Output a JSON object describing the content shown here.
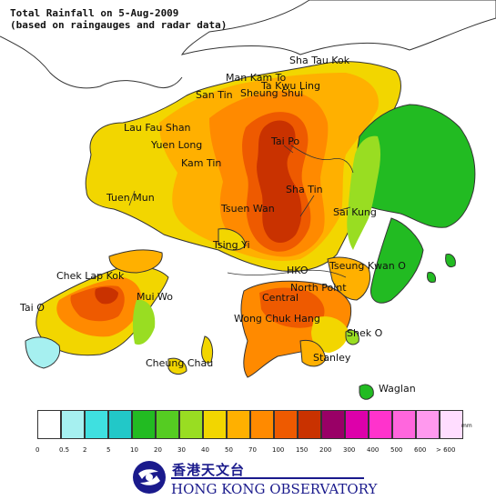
{
  "header": {
    "title_line1": "Total Rainfall on 5-Aug-2009",
    "title_line2": "(based on raingauges and radar data)"
  },
  "map": {
    "places": [
      {
        "key": "sha-tau-kok",
        "label": "Sha Tau Kok"
      },
      {
        "key": "man-kam-to",
        "label": "Man Kam To"
      },
      {
        "key": "ta-kwu-ling",
        "label": "Ta Kwu Ling"
      },
      {
        "key": "san-tin",
        "label": "San Tin"
      },
      {
        "key": "sheung-shui",
        "label": "Sheung Shui"
      },
      {
        "key": "lau-fau-shan",
        "label": "Lau Fau Shan"
      },
      {
        "key": "yuen-long",
        "label": "Yuen Long"
      },
      {
        "key": "tai-po",
        "label": "Tai Po"
      },
      {
        "key": "kam-tin",
        "label": "Kam Tin"
      },
      {
        "key": "sha-tin",
        "label": "Sha Tin"
      },
      {
        "key": "tuen-mun",
        "label": "Tuen Mun"
      },
      {
        "key": "tsuen-wan",
        "label": "Tsuen Wan"
      },
      {
        "key": "sai-kung",
        "label": "Sai Kung"
      },
      {
        "key": "tsing-yi",
        "label": "Tsing Yi"
      },
      {
        "key": "hko",
        "label": "HKO"
      },
      {
        "key": "tseung-kwan-o",
        "label": "Tseung Kwan O"
      },
      {
        "key": "chek-lap-kok",
        "label": "Chek Lap Kok"
      },
      {
        "key": "north-point",
        "label": "North Point"
      },
      {
        "key": "mui-wo",
        "label": "Mui Wo"
      },
      {
        "key": "central",
        "label": "Central"
      },
      {
        "key": "tai-o",
        "label": "Tai O"
      },
      {
        "key": "wong-chuk-hang",
        "label": "Wong Chuk Hang"
      },
      {
        "key": "shek-o",
        "label": "Shek O"
      },
      {
        "key": "stanley",
        "label": "Stanley"
      },
      {
        "key": "cheung-chau",
        "label": "Cheung Chau"
      },
      {
        "key": "waglan",
        "label": "Waglan"
      }
    ],
    "colors": {
      "land_outline": "#333333",
      "mainland": "#ffffff",
      "sea": "#ffffff"
    }
  },
  "legend": {
    "unit": "mm",
    "bins": [
      {
        "label": "0",
        "color": "#ffffff"
      },
      {
        "label": "0.5",
        "color": "#a6f0f0"
      },
      {
        "label": "2",
        "color": "#3fe0e0"
      },
      {
        "label": "5",
        "color": "#22c8c8"
      },
      {
        "label": "10",
        "color": "#22bb22"
      },
      {
        "label": "20",
        "color": "#55cc22"
      },
      {
        "label": "30",
        "color": "#99dd22"
      },
      {
        "label": "40",
        "color": "#f2d600"
      },
      {
        "label": "50",
        "color": "#ffb000"
      },
      {
        "label": "70",
        "color": "#ff8a00"
      },
      {
        "label": "100",
        "color": "#ee5a00"
      },
      {
        "label": "150",
        "color": "#c93200"
      },
      {
        "label": "200",
        "color": "#990066"
      },
      {
        "label": "300",
        "color": "#dd00aa"
      },
      {
        "label": "400",
        "color": "#ff33cc"
      },
      {
        "label": "500",
        "color": "#ff66dd"
      },
      {
        "label": "600",
        "color": "#ff99ee"
      },
      {
        "label": "> 600",
        "color": "#ffddff"
      }
    ]
  },
  "logo": {
    "org_cn": "香港天文台",
    "org_en": "HONG KONG OBSERVATORY",
    "brand_color": "#1a1a8c"
  }
}
